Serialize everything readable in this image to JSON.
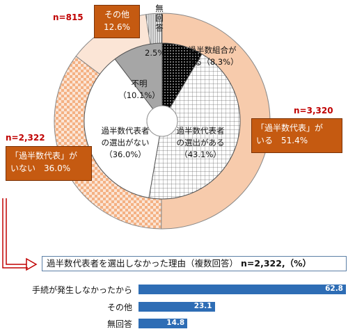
{
  "chart_data": [
    {
      "type": "pie",
      "subtype": "donut-outer",
      "slices": [
        {
          "label": "「過半数代表」がいる",
          "pct": "51.4%",
          "value": 51.4,
          "n": "n=3,320",
          "color": "#f7cbac"
        },
        {
          "label": "「過半数代表」がいない",
          "pct": "36.0%",
          "value": 36.0,
          "n": "n=2,322",
          "color": "#f9d9c4",
          "pattern": "checker"
        },
        {
          "label": "その他",
          "pct": "12.6%",
          "value": 12.6,
          "n": "n=815",
          "color": "#fbe5d6"
        },
        {
          "label": "無回答",
          "pct": "2.5%",
          "value": 2.5,
          "color": "#ffffff"
        }
      ]
    },
    {
      "type": "pie",
      "subtype": "donut-inner",
      "slices": [
        {
          "label_lines": [
            "過半数組合が",
            "ある（8.3%）"
          ],
          "value": 8.3,
          "pattern": "dots-dark"
        },
        {
          "label_lines": [
            "過半数代表者",
            "の選出がある",
            "（43.1%）"
          ],
          "value": 43.1,
          "pattern": "grid"
        },
        {
          "label_lines": [
            "過半数代表者",
            "の選出がない",
            "（36.0%）"
          ],
          "value": 36.0,
          "color": "#ffffff"
        },
        {
          "label_lines": [
            "不明",
            "（10.1%）"
          ],
          "value": 10.1,
          "color": "#a6a6a6"
        }
      ]
    },
    {
      "type": "bar",
      "orientation": "horizontal",
      "title": "過半数代表者を選出しなかった理由（複数回答）",
      "n_label": "n=2,322,（%）",
      "categories": [
        "手続が発生しなかったから",
        "その他",
        "無回答"
      ],
      "values": [
        62.8,
        23.1,
        14.8
      ],
      "value_labels": [
        "62.8",
        "23.1",
        "14.8"
      ],
      "xlim": [
        0,
        62.8
      ],
      "color": "#2e6db5"
    }
  ],
  "no_answer_vertical": "無回答",
  "no_answer_pct": "2.5%"
}
